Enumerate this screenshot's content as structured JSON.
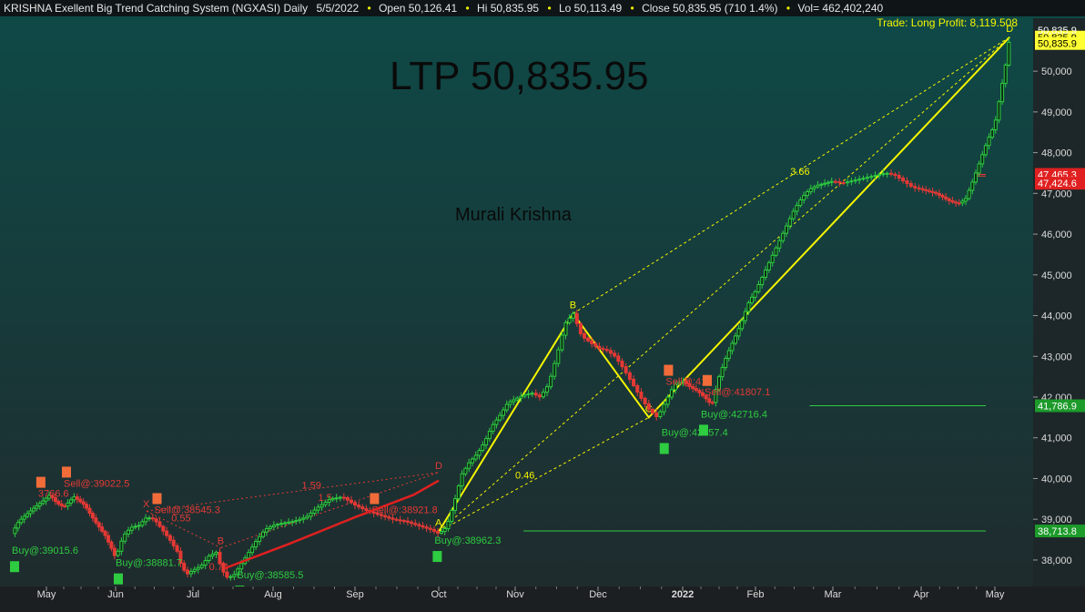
{
  "header": {
    "title": "KRISHNA Exellent Big Trend Catching System (NGXASI) Daily",
    "date": "5/5/2022",
    "open": "Open 50,126.41",
    "hi": "Hi 50,835.95",
    "lo": "Lo 50,113.49",
    "close": "Close 50,835.95 (710 1.4%)",
    "vol": "Vol= 462,402,240",
    "trade_info": "Trade: Long Profit: 8,119.508"
  },
  "overlay": {
    "ltp": "LTP 50,835.95",
    "author": "Murali Krishna"
  },
  "colors": {
    "background_top": "#0e4a47",
    "background_bottom": "#202a2c",
    "up_candle": "#2ecc40",
    "down_candle": "#e53935",
    "pattern": "#f5f500",
    "axis_badge_yellow": "#ffff33",
    "axis_badge_green": "#1c9a2a",
    "axis_badge_red": "#e02020"
  },
  "chart_data": {
    "type": "candlestick",
    "symbol": "NGXASI",
    "timeframe": "Daily",
    "x_tick_labels": [
      "May",
      "Jun",
      "Jul",
      "Aug",
      "Sep",
      "Oct",
      "Nov",
      "Dec",
      "2022",
      "Feb",
      "Mar",
      "Apr",
      "May"
    ],
    "y_tick_labels": [
      "38,000",
      "39,000",
      "40,000",
      "41,000",
      "42,000",
      "43,000",
      "44,000",
      "45,000",
      "46,000",
      "47,000",
      "48,000",
      "49,000",
      "50,000"
    ],
    "y_ticks": [
      38000,
      39000,
      40000,
      41000,
      42000,
      43000,
      44000,
      45000,
      46000,
      47000,
      48000,
      49000,
      50000
    ],
    "ylim": [
      37350,
      51300
    ],
    "price_badges": [
      {
        "label": "50,835.9",
        "value": 50835.95,
        "style": "yellow"
      },
      {
        "label": "50,835.9",
        "value": 51010,
        "style": "plain"
      },
      {
        "label": "50,835.9",
        "value": 50680,
        "style": "yellow"
      },
      {
        "label": "47,465.3",
        "value": 47465.3,
        "style": "red"
      },
      {
        "label": "47,424.6",
        "value": 47250,
        "style": "red"
      },
      {
        "label": "41,786.9",
        "value": 41786.9,
        "style": "green"
      },
      {
        "label": "38,713.8",
        "value": 38713.8,
        "style": "green"
      }
    ],
    "horizontal_levels": [
      {
        "value": 41786.9,
        "color": "#2ecc40",
        "from": 9.7
      },
      {
        "value": 38713.8,
        "color": "#2ecc40",
        "from": 6.1
      },
      {
        "value": 47465.3,
        "color": "#e53935",
        "from": 11.75
      },
      {
        "value": 47424.6,
        "color": "#e53935",
        "from": 11.75
      }
    ],
    "price_path": [
      [
        -0.5,
        38650
      ],
      [
        -0.4,
        38950
      ],
      [
        -0.2,
        39250
      ],
      [
        -0.05,
        39450
      ],
      [
        0.05,
        39600
      ],
      [
        0.15,
        39400
      ],
      [
        0.25,
        39300
      ],
      [
        0.4,
        39550
      ],
      [
        0.55,
        39350
      ],
      [
        0.7,
        38950
      ],
      [
        0.85,
        38600
      ],
      [
        0.95,
        38250
      ],
      [
        1.0,
        38050
      ],
      [
        1.1,
        38600
      ],
      [
        1.2,
        38800
      ],
      [
        1.3,
        38850
      ],
      [
        1.4,
        39050
      ],
      [
        1.5,
        39000
      ],
      [
        1.6,
        38750
      ],
      [
        1.7,
        38500
      ],
      [
        1.8,
        38200
      ],
      [
        1.85,
        37850
      ],
      [
        1.92,
        37650
      ],
      [
        2.0,
        37750
      ],
      [
        2.1,
        37850
      ],
      [
        2.2,
        38100
      ],
      [
        2.3,
        38200
      ],
      [
        2.35,
        37800
      ],
      [
        2.42,
        37580
      ],
      [
        2.5,
        37600
      ],
      [
        2.6,
        37900
      ],
      [
        2.7,
        38200
      ],
      [
        2.8,
        38500
      ],
      [
        2.9,
        38750
      ],
      [
        3.0,
        38850
      ],
      [
        3.1,
        38900
      ],
      [
        3.25,
        38950
      ],
      [
        3.4,
        39050
      ],
      [
        3.55,
        39300
      ],
      [
        3.7,
        39500
      ],
      [
        3.85,
        39550
      ],
      [
        4.0,
        39350
      ],
      [
        4.15,
        39200
      ],
      [
        4.3,
        39100
      ],
      [
        4.45,
        39000
      ],
      [
        4.6,
        38950
      ],
      [
        4.75,
        38850
      ],
      [
        4.9,
        38750
      ],
      [
        5.0,
        38650
      ],
      [
        5.1,
        38800
      ],
      [
        5.2,
        39400
      ],
      [
        5.3,
        40100
      ],
      [
        5.4,
        40400
      ],
      [
        5.5,
        40600
      ],
      [
        5.6,
        40900
      ],
      [
        5.7,
        41300
      ],
      [
        5.8,
        41550
      ],
      [
        5.9,
        41850
      ],
      [
        6.0,
        41950
      ],
      [
        6.1,
        42050
      ],
      [
        6.2,
        42100
      ],
      [
        6.3,
        42000
      ],
      [
        6.4,
        42300
      ],
      [
        6.5,
        43000
      ],
      [
        6.6,
        43800
      ],
      [
        6.7,
        44050
      ],
      [
        6.8,
        43500
      ],
      [
        6.9,
        43350
      ],
      [
        7.0,
        43200
      ],
      [
        7.1,
        43150
      ],
      [
        7.2,
        43000
      ],
      [
        7.3,
        42700
      ],
      [
        7.4,
        42350
      ],
      [
        7.5,
        42000
      ],
      [
        7.6,
        41700
      ],
      [
        7.7,
        41500
      ],
      [
        7.8,
        41900
      ],
      [
        7.9,
        42300
      ],
      [
        8.0,
        42400
      ],
      [
        8.1,
        42250
      ],
      [
        8.2,
        42150
      ],
      [
        8.3,
        42000
      ],
      [
        8.4,
        41800
      ],
      [
        8.5,
        42500
      ],
      [
        8.6,
        43000
      ],
      [
        8.7,
        43400
      ],
      [
        8.8,
        43800
      ],
      [
        8.9,
        44300
      ],
      [
        9.0,
        44600
      ],
      [
        9.1,
        45000
      ],
      [
        9.2,
        45400
      ],
      [
        9.3,
        45800
      ],
      [
        9.4,
        46200
      ],
      [
        9.5,
        46600
      ],
      [
        9.6,
        46900
      ],
      [
        9.7,
        47100
      ],
      [
        9.8,
        47200
      ],
      [
        9.9,
        47250
      ],
      [
        10.0,
        47300
      ],
      [
        10.1,
        47250
      ],
      [
        10.2,
        47300
      ],
      [
        10.3,
        47350
      ],
      [
        10.4,
        47400
      ],
      [
        10.5,
        47450
      ],
      [
        10.6,
        47500
      ],
      [
        10.7,
        47450
      ],
      [
        10.8,
        47300
      ],
      [
        10.9,
        47150
      ],
      [
        11.0,
        47100
      ],
      [
        11.1,
        47050
      ],
      [
        11.2,
        47000
      ],
      [
        11.3,
        46900
      ],
      [
        11.4,
        46800
      ],
      [
        11.5,
        46750
      ],
      [
        11.6,
        46850
      ],
      [
        11.7,
        47300
      ],
      [
        11.8,
        47800
      ],
      [
        11.9,
        48300
      ],
      [
        12.0,
        48700
      ],
      [
        12.05,
        49200
      ],
      [
        12.1,
        49700
      ],
      [
        12.15,
        50200
      ],
      [
        12.2,
        50836
      ]
    ],
    "red_trend_line": [
      [
        2.4,
        37800
      ],
      [
        3.2,
        38400
      ],
      [
        4.0,
        39050
      ],
      [
        4.7,
        39600
      ],
      [
        5.0,
        39950
      ]
    ],
    "harmonic_pattern_1": {
      "points": [
        {
          "label": "A",
          "x": 5.0,
          "y": 38700
        },
        {
          "label": "B",
          "x": 6.7,
          "y": 44050
        },
        {
          "label": "C",
          "x": 7.6,
          "y": 41500
        },
        {
          "label": "D",
          "x": 12.2,
          "y": 50836
        }
      ],
      "ratios": [
        {
          "label": "0.46",
          "x": 6.0,
          "y": 40000
        },
        {
          "label": "3.66",
          "x": 9.45,
          "y": 47450
        }
      ]
    },
    "harmonic_pattern_2": {
      "points": [
        {
          "label": "X",
          "x": 1.4,
          "y": 39200
        },
        {
          "label": "B",
          "x": 2.35,
          "y": 38300
        },
        {
          "label": "D",
          "x": 5.0,
          "y": 40150
        }
      ],
      "ratios": [
        {
          "label": "0.55",
          "x": 1.72,
          "y": 38950
        },
        {
          "label": "0.74",
          "x": 2.2,
          "y": 37750
        },
        {
          "label": "1.59",
          "x": 3.35,
          "y": 39750
        },
        {
          "label": "1.5",
          "x": 3.55,
          "y": 39450
        }
      ]
    },
    "signals": [
      {
        "type": "sell",
        "label": "3766.6",
        "x": -0.12,
        "y": 39550
      },
      {
        "type": "sell",
        "label": "Sell@:39022.5",
        "x": 0.25,
        "y": 39800
      },
      {
        "type": "sell",
        "label": "Sell@:38545.3",
        "x": 1.5,
        "y": 39150
      },
      {
        "type": "sell",
        "label": "Sell@:38921.8",
        "x": 4.2,
        "y": 39150
      },
      {
        "type": "sell",
        "label": "Sell@:41",
        "x": 7.8,
        "y": 42300
      },
      {
        "type": "sell",
        "label": "Sell@:41807.1",
        "x": 8.3,
        "y": 42050
      },
      {
        "type": "buy",
        "label": "Buy@:39015.6",
        "x": -0.5,
        "y": 38150
      },
      {
        "type": "buy",
        "label": "Buy@:38881.7",
        "x": 1.0,
        "y": 37850
      },
      {
        "type": "buy",
        "label": "Buy@:38585.5",
        "x": 2.55,
        "y": 37550
      },
      {
        "type": "buy",
        "label": "Buy@:38962.3",
        "x": 4.95,
        "y": 38400
      },
      {
        "type": "buy",
        "label": "Buy@:42357.4",
        "x": 7.75,
        "y": 41050
      },
      {
        "type": "buy",
        "label": "Buy@:42716.4",
        "x": 8.25,
        "y": 41500
      }
    ]
  }
}
